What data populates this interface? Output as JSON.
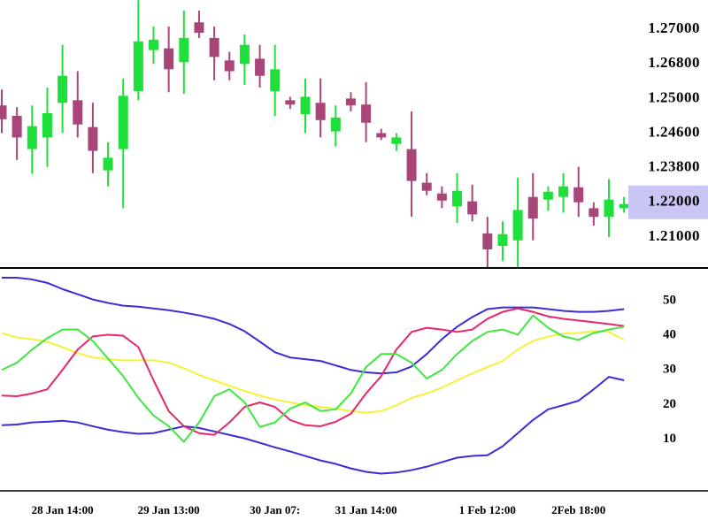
{
  "chart_data": [
    {
      "type": "candlestick",
      "open": [
        1.2492,
        1.248,
        1.2423,
        1.245,
        1.2495,
        1.2498,
        1.2467,
        1.2366,
        1.2423,
        1.2538,
        1.2688,
        1.2689,
        1.2681,
        1.271,
        1.2695,
        1.2682,
        1.268,
        1.2683,
        1.2538,
        1.2498,
        1.2482,
        1.2495,
        1.2462,
        1.25,
        1.2493,
        1.246,
        1.2435,
        1.2423,
        1.2302,
        1.2246,
        1.2188,
        1.2205,
        1.211,
        1.2087,
        1.2095,
        1.2228,
        1.2214,
        1.2228,
        1.2278,
        1.2183,
        1.2158,
        1.2183
      ],
      "high": [
        1.2547,
        1.249,
        1.2492,
        1.2557,
        1.2691,
        1.2642,
        1.2495,
        1.2439,
        1.2604,
        1.2742,
        1.2704,
        1.2704,
        1.2727,
        1.2727,
        1.2704,
        1.2687,
        1.2697,
        1.2691,
        1.2691,
        1.2509,
        1.2604,
        1.2604,
        1.2492,
        1.2533,
        1.2585,
        1.2465,
        1.246,
        1.2485,
        1.2352,
        1.2283,
        1.2352,
        1.2292,
        1.2158,
        1.2145,
        1.2329,
        1.2352,
        1.2283,
        1.2352,
        1.2382,
        1.22,
        1.232,
        1.2228
      ],
      "low": [
        1.246,
        1.2398,
        1.2348,
        1.2382,
        1.246,
        1.245,
        1.2352,
        1.2283,
        1.2183,
        1.2498,
        1.268,
        1.2533,
        1.2524,
        1.2695,
        1.2595,
        1.2595,
        1.2571,
        1.2557,
        1.248,
        1.2488,
        1.246,
        1.245,
        1.2429,
        1.2485,
        1.2439,
        1.2444,
        1.2419,
        1.2158,
        1.2237,
        1.2183,
        1.214,
        1.2145,
        1.2055,
        1.2065,
        1.205,
        1.2095,
        1.2175,
        1.217,
        1.2158,
        1.2133,
        1.21,
        1.217
      ],
      "close": [
        1.2476,
        1.245,
        1.2468,
        1.2483,
        1.2618,
        1.247,
        1.2419,
        1.2403,
        1.2514,
        1.2693,
        1.2694,
        1.2652,
        1.2695,
        1.2698,
        1.2684,
        1.2642,
        1.2691,
        1.2618,
        1.2652,
        1.2493,
        1.2509,
        1.2475,
        1.2478,
        1.2492,
        1.2472,
        1.245,
        1.245,
        1.2311,
        1.226,
        1.2209,
        1.226,
        1.2165,
        1.2082,
        1.2108,
        1.2178,
        1.2153,
        1.2255,
        1.2283,
        1.22,
        1.2158,
        1.2214,
        1.2195
      ],
      "up_color": "#1fe03a",
      "down_color": "#a8467a",
      "ylim": [
        1.205,
        1.275
      ],
      "yticks": [
        {
          "value": 1.27,
          "label": "1.27000"
        },
        {
          "value": 1.268,
          "label": "1.26800"
        },
        {
          "value": 1.25,
          "label": "1.25000"
        },
        {
          "value": 1.246,
          "label": "1.24600"
        },
        {
          "value": 1.238,
          "label": "1.23800"
        },
        {
          "value": 1.22,
          "label": "1.22000"
        },
        {
          "value": 1.21,
          "label": "1.21000"
        }
      ],
      "last_price": 1.22,
      "price_marker_color": "#c9c5f5"
    },
    {
      "type": "line",
      "categories": [
        null,
        null,
        null,
        null,
        "28 Jan 14:00",
        null,
        null,
        null,
        null,
        null,
        null,
        "29 Jan 13:00",
        null,
        null,
        null,
        null,
        null,
        null,
        "30 Jan 07:",
        null,
        null,
        null,
        null,
        null,
        "31 Jan 14:00",
        null,
        null,
        null,
        null,
        null,
        null,
        null,
        "1 Feb 12:00",
        null,
        null,
        null,
        null,
        null,
        "2Feb 18:00",
        null,
        null,
        null
      ],
      "ylim": [
        -5,
        59
      ],
      "yticks": [
        10,
        20,
        30,
        40,
        50
      ],
      "series": [
        {
          "color": "#3b2bd8",
          "values": [
            56.7,
            56.7,
            56.2,
            55.2,
            53.4,
            51.9,
            50.4,
            49.4,
            48.6,
            48.3,
            47.8,
            47.3,
            46.6,
            45.8,
            44.8,
            43.3,
            41.2,
            38.2,
            35.1,
            33.6,
            33.1,
            32.6,
            31.3,
            30.0,
            29.3,
            29.0,
            29.3,
            31.0,
            34.6,
            38.9,
            42.5,
            45.3,
            47.6,
            48.1,
            48.1,
            48.1,
            47.6,
            47.1,
            46.8,
            46.8,
            47.1,
            47.6
          ]
        },
        {
          "color": "#3b2bd8",
          "values": [
            14.0,
            14.2,
            14.8,
            15.0,
            15.3,
            14.8,
            13.7,
            12.7,
            12.0,
            11.5,
            11.7,
            12.7,
            13.7,
            13.2,
            12.2,
            11.2,
            10.2,
            8.9,
            7.6,
            6.4,
            5.1,
            3.8,
            2.8,
            1.5,
            0.5,
            0.0,
            0.3,
            1.0,
            2.0,
            3.3,
            4.6,
            5.1,
            5.3,
            7.9,
            11.7,
            15.5,
            18.6,
            19.8,
            21.1,
            24.4,
            28.0,
            27.0
          ]
        },
        {
          "color": "#f4f23c",
          "values": [
            40.7,
            39.4,
            38.9,
            38.2,
            36.6,
            34.9,
            33.6,
            33.1,
            32.8,
            32.8,
            32.8,
            32.1,
            30.5,
            28.5,
            27.0,
            25.4,
            23.9,
            22.6,
            21.4,
            20.6,
            19.8,
            19.3,
            18.8,
            18.1,
            17.6,
            18.1,
            19.8,
            21.9,
            23.2,
            24.9,
            27.0,
            29.0,
            30.8,
            32.6,
            35.9,
            38.4,
            39.7,
            40.5,
            40.7,
            41.2,
            41.0,
            38.7
          ]
        },
        {
          "color": "#e8266c",
          "values": [
            22.6,
            22.4,
            23.2,
            24.4,
            30.0,
            35.9,
            39.7,
            40.2,
            39.9,
            36.6,
            27.0,
            18.1,
            13.7,
            11.7,
            11.2,
            14.8,
            19.3,
            20.6,
            19.3,
            15.5,
            14.0,
            13.7,
            15.0,
            17.3,
            23.2,
            28.2,
            35.9,
            41.0,
            42.2,
            41.7,
            41.0,
            41.7,
            44.8,
            46.8,
            47.8,
            46.8,
            45.5,
            44.8,
            44.3,
            43.8,
            43.3,
            42.7
          ]
        },
        {
          "color": "#3ee83e",
          "values": [
            30.0,
            32.1,
            35.9,
            39.2,
            41.7,
            41.7,
            38.4,
            33.3,
            28.2,
            21.9,
            16.8,
            13.7,
            9.2,
            14.8,
            22.4,
            24.4,
            20.6,
            13.5,
            14.8,
            18.8,
            20.6,
            18.1,
            18.6,
            23.2,
            30.8,
            34.6,
            34.6,
            32.1,
            27.5,
            30.0,
            34.6,
            38.4,
            41.0,
            41.7,
            40.2,
            45.8,
            42.2,
            39.7,
            38.7,
            40.7,
            41.7,
            42.5
          ]
        }
      ]
    }
  ]
}
